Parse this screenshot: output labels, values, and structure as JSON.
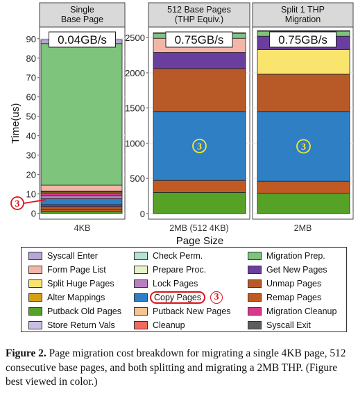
{
  "chart_data": [
    {
      "type": "bar",
      "stacked": true,
      "title": "Single Base Page",
      "title_lines": [
        "Single",
        "Base Page"
      ],
      "throughput": "0.04GB/s",
      "categories": [
        "4KB"
      ],
      "ylim": [
        -3,
        96
      ],
      "yticks": [
        0,
        10,
        20,
        30,
        40,
        50,
        60,
        70,
        80,
        90
      ],
      "ylabel": "Time(us)",
      "grid": true,
      "segments": [
        {
          "name": "Putback Old Pages",
          "value": 1.0
        },
        {
          "name": "Remap Pages",
          "value": 1.0
        },
        {
          "name": "Unmap Pages",
          "value": 1.5
        },
        {
          "name": "Get New Pages",
          "value": 1.0
        },
        {
          "name": "Copy Pages",
          "value": 3.0
        },
        {
          "name": "Lock Pages",
          "value": 1.5
        },
        {
          "name": "Migration Cleanup",
          "value": 1.5
        },
        {
          "name": "Alter Mappings",
          "value": 0.5
        },
        {
          "name": "Syscall Exit",
          "value": 0.5
        },
        {
          "name": "Form Page List",
          "value": 3.0
        },
        {
          "name": "Migration Prep.",
          "value": 73.0
        },
        {
          "name": "Syscall Enter",
          "value": 2.0
        }
      ],
      "callout": "3"
    },
    {
      "type": "bar",
      "stacked": true,
      "title": "512 Base Pages (THP Equiv.)",
      "title_lines": [
        "512 Base Pages",
        "(THP Equiv.)"
      ],
      "throughput": "0.75GB/s",
      "categories": [
        "2MB (512 4KB)"
      ],
      "ylim": [
        -80,
        2650
      ],
      "yticks": [
        0,
        500,
        1000,
        1500,
        2000,
        2500
      ],
      "grid": true,
      "segments": [
        {
          "name": "Putback Old Pages",
          "value": 300
        },
        {
          "name": "Remap Pages",
          "value": 170
        },
        {
          "name": "Copy Pages",
          "value": 980
        },
        {
          "name": "Unmap Pages",
          "value": 610
        },
        {
          "name": "Get New Pages",
          "value": 230
        },
        {
          "name": "Form Page List",
          "value": 200
        },
        {
          "name": "Migration Prep.",
          "value": 70
        },
        {
          "name": "Syscall Enter",
          "value": 10
        }
      ],
      "callout": "3"
    },
    {
      "type": "bar",
      "stacked": true,
      "title": "Split 1 THP Migration",
      "title_lines": [
        "Split 1 THP",
        "Migration"
      ],
      "throughput": "0.75GB/s",
      "categories": [
        "2MB"
      ],
      "ylim": [
        -80,
        2650
      ],
      "yticks": [
        0,
        500,
        1000,
        1500,
        2000,
        2500
      ],
      "grid": true,
      "segments": [
        {
          "name": "Putback Old Pages",
          "value": 290
        },
        {
          "name": "Remap Pages",
          "value": 170
        },
        {
          "name": "Copy Pages",
          "value": 990
        },
        {
          "name": "Unmap Pages",
          "value": 530
        },
        {
          "name": "Split Huge Pages",
          "value": 350
        },
        {
          "name": "Get New Pages",
          "value": 190
        },
        {
          "name": "Migration Prep.",
          "value": 70
        },
        {
          "name": "Syscall Enter",
          "value": 10
        }
      ],
      "callout": "3"
    }
  ],
  "xlabel": "Page Size",
  "legend": [
    {
      "name": "Syscall Enter",
      "color": "#b8a6d6"
    },
    {
      "name": "Form Page List",
      "color": "#f4b5a8"
    },
    {
      "name": "Split Huge Pages",
      "color": "#f9e46e"
    },
    {
      "name": "Alter Mappings",
      "color": "#d4a017"
    },
    {
      "name": "Putback Old Pages",
      "color": "#55a227"
    },
    {
      "name": "Store Return Vals",
      "color": "#c9bde3"
    },
    {
      "name": "Check Perm.",
      "color": "#b5e3d3"
    },
    {
      "name": "Prepare Proc.",
      "color": "#e6f2c8"
    },
    {
      "name": "Lock Pages",
      "color": "#b67fc0"
    },
    {
      "name": "Copy Pages",
      "color": "#2f7fc4",
      "highlight": true,
      "callout": "3"
    },
    {
      "name": "Putback New Pages",
      "color": "#f6c492"
    },
    {
      "name": "Cleanup",
      "color": "#f06b5f"
    },
    {
      "name": "Migration Prep.",
      "color": "#7ec47c"
    },
    {
      "name": "Get New Pages",
      "color": "#6a3e9e"
    },
    {
      "name": "Unmap Pages",
      "color": "#b85a27"
    },
    {
      "name": "Remap Pages",
      "color": "#bf5a24"
    },
    {
      "name": "Migration Cleanup",
      "color": "#d8398c"
    },
    {
      "name": "Syscall Exit",
      "color": "#5e5e5e"
    }
  ],
  "caption": {
    "label": "Figure 2.",
    "text": "Page migration cost breakdown for migrating a single 4KB page, 512 consecutive base pages, and both splitting and migrating a 2MB THP. (Figure best viewed in color.)"
  }
}
